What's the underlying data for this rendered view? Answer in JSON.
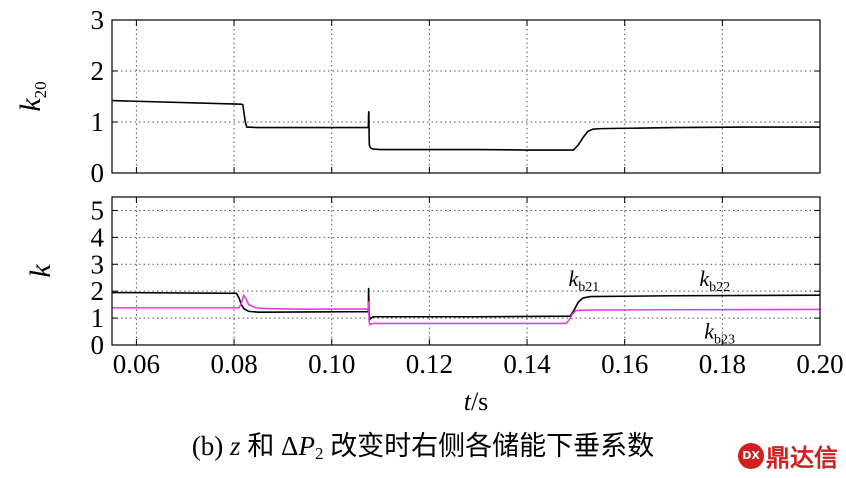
{
  "chart_data": [
    {
      "type": "line",
      "ylabel_main": "k",
      "ylabel_sub": "20",
      "xlim": [
        0.055,
        0.2
      ],
      "ylim": [
        0,
        3
      ],
      "yticks": [
        "0",
        "1",
        "2",
        "3"
      ],
      "grid": true,
      "series": [
        {
          "color": "#000000",
          "x": [
            0.055,
            0.0814,
            0.0818,
            0.082,
            0.0823,
            0.0826,
            0.085,
            0.095,
            0.1075,
            0.10755,
            0.1076,
            0.10765,
            0.1077,
            0.1079,
            0.1081,
            0.1085,
            0.11,
            0.12,
            0.13,
            0.14,
            0.1495,
            0.1505,
            0.1515,
            0.1525,
            0.1535,
            0.155,
            0.17,
            0.185,
            0.2
          ],
          "y": [
            1.42,
            1.35,
            1.34,
            1.2,
            1.0,
            0.9,
            0.89,
            0.89,
            0.89,
            1.15,
            1.2,
            0.8,
            0.55,
            0.5,
            0.48,
            0.47,
            0.46,
            0.46,
            0.46,
            0.45,
            0.45,
            0.55,
            0.7,
            0.82,
            0.86,
            0.87,
            0.89,
            0.9,
            0.9
          ]
        }
      ]
    },
    {
      "type": "line",
      "ylabel": "k",
      "xlabel_main": "t",
      "xlabel_unit": "/s",
      "xlim": [
        0.055,
        0.2
      ],
      "ylim": [
        0,
        5.5
      ],
      "yticks": [
        "0",
        "1",
        "2",
        "3",
        "4",
        "5"
      ],
      "xticks": [
        0.06,
        0.08,
        0.1,
        0.12,
        0.14,
        0.16,
        0.18,
        0.2
      ],
      "xticklabels": [
        "0.06",
        "0.08",
        "0.10",
        "0.12",
        "0.14",
        "0.16",
        "0.18",
        "0.20"
      ],
      "grid": true,
      "annotations": [
        {
          "main": "k",
          "sub": "b21",
          "x": 0.1485,
          "y": 2.2
        },
        {
          "main": "k",
          "sub": "b22",
          "x": 0.1753,
          "y": 2.2
        },
        {
          "main": "k",
          "sub": "b23",
          "x": 0.1763,
          "y": 0.25
        }
      ],
      "series": [
        {
          "color": "#000000",
          "x": [
            0.055,
            0.0805,
            0.081,
            0.0815,
            0.082,
            0.083,
            0.085,
            0.095,
            0.1075,
            0.10755,
            0.1076,
            0.10765,
            0.1078,
            0.1081,
            0.1085,
            0.11,
            0.13,
            0.1488,
            0.1495,
            0.1505,
            0.1515,
            0.153,
            0.17,
            0.2
          ],
          "y": [
            1.95,
            1.92,
            1.75,
            1.5,
            1.35,
            1.25,
            1.22,
            1.23,
            1.24,
            2.1,
            1.7,
            1.2,
            0.95,
            1.0,
            1.05,
            1.05,
            1.05,
            1.07,
            1.25,
            1.6,
            1.75,
            1.8,
            1.83,
            1.85
          ]
        },
        {
          "color": "#e040e0",
          "x": [
            0.055,
            0.081,
            0.0815,
            0.082,
            0.0825,
            0.083,
            0.0845,
            0.087,
            0.095,
            0.1075,
            0.10755,
            0.1076,
            0.10765,
            0.1078,
            0.1081,
            0.1085,
            0.11,
            0.13,
            0.148,
            0.1487,
            0.1493,
            0.15,
            0.152,
            0.17,
            0.2
          ],
          "y": [
            1.38,
            1.38,
            1.55,
            1.85,
            1.7,
            1.5,
            1.38,
            1.35,
            1.33,
            1.34,
            1.6,
            1.3,
            0.9,
            0.75,
            0.78,
            0.8,
            0.8,
            0.8,
            0.8,
            0.95,
            1.15,
            1.28,
            1.3,
            1.31,
            1.32
          ]
        }
      ]
    }
  ],
  "caption": {
    "prefix": "(b) ",
    "var_z": "z",
    "mid": " 和 Δ",
    "var_P": "P",
    "sub_2": "2",
    "suffix": " 改变时右侧各储能下垂系数"
  },
  "watermark": {
    "logo_text": "DX",
    "text": "鼎达信"
  }
}
